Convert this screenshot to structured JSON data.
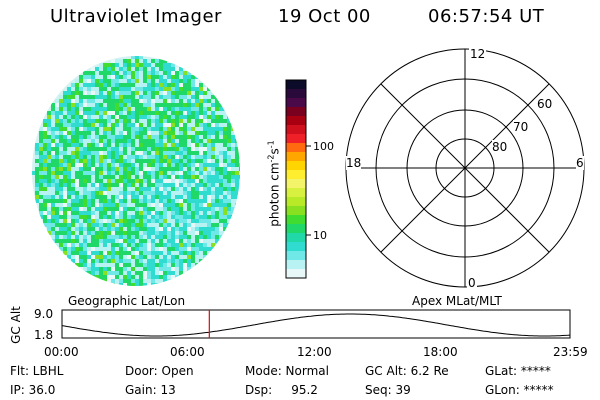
{
  "header": {
    "instrument": "Ultraviolet Imager",
    "date": "19 Oct 00",
    "time": "06:57:54 UT"
  },
  "colorbar": {
    "unit_prefix": "photon cm",
    "unit_exp1": "-2",
    "unit_mid": "s",
    "unit_exp2": "-1",
    "ticks": [
      "100",
      "10"
    ],
    "colors_top_to_bottom": [
      "#0c0c2a",
      "#2a0a3a",
      "#4a0a4a",
      "#7a0020",
      "#a80010",
      "#d0101c",
      "#f02028",
      "#ff6a10",
      "#ffa600",
      "#ffd400",
      "#ffee30",
      "#f4f46a",
      "#d8f040",
      "#b8ea28",
      "#88e020",
      "#40dc30",
      "#20d868",
      "#20d8a8",
      "#30dcd0",
      "#70e8e8",
      "#b8f2f2",
      "#e8f8f8"
    ]
  },
  "polar_grid": {
    "mlt_top": "12",
    "mlt_left": "18",
    "mlt_right": "6",
    "mlt_bottom": "0",
    "lat_labels": [
      "60",
      "70",
      "80"
    ]
  },
  "timeline": {
    "left_title": "Geographic Lat/Lon",
    "right_title": "Apex MLat/MLT",
    "axis_label": "GC Alt",
    "y_ticks": [
      "9.0",
      "1.8"
    ],
    "x_ticks": [
      "00:00",
      "06:00",
      "12:00",
      "18:00",
      "23:59"
    ],
    "current_time_fraction": 0.29
  },
  "status": {
    "flt": "Flt: LBHL",
    "ip": "IP: 36.0",
    "door": "Door: Open",
    "gain": "Gain: 13",
    "mode": "Mode: Normal",
    "dsp": "Dsp:     95.2",
    "gcalt": "GC Alt: 6.2 Re",
    "seq": "Seq: 39",
    "glat": "GLat: *****",
    "glon": "GLon: *****"
  },
  "colors": {
    "marker": "#d01010",
    "image_palette": [
      "#20d868",
      "#30dcd0",
      "#70e8e8",
      "#b8f2f2",
      "#40dc30",
      "#88e020",
      "#e8f8f8"
    ]
  }
}
